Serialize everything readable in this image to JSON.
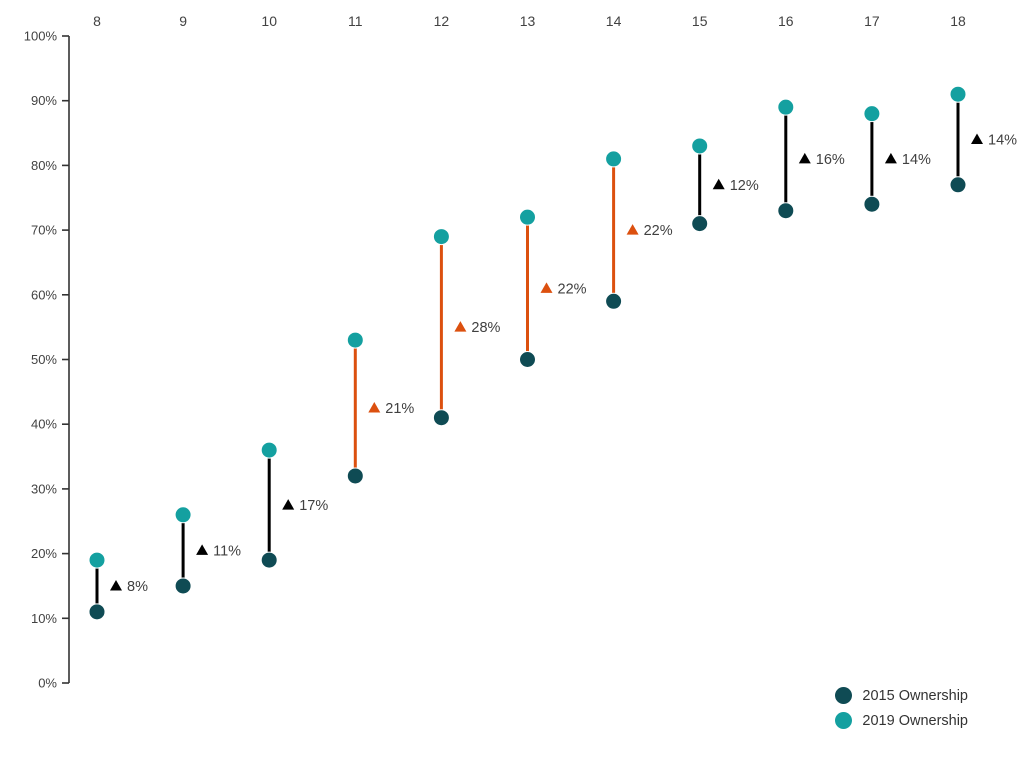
{
  "chart_data": {
    "type": "dumbbell",
    "title": "",
    "categories": [
      "8",
      "9",
      "10",
      "11",
      "12",
      "13",
      "14",
      "15",
      "16",
      "17",
      "18"
    ],
    "series": [
      {
        "name": "2015 Ownership",
        "values": [
          11,
          15,
          19,
          32,
          41,
          50,
          59,
          71,
          73,
          74,
          77
        ],
        "color": "#0F4B54"
      },
      {
        "name": "2019 Ownership",
        "values": [
          19,
          26,
          36,
          53,
          69,
          72,
          81,
          83,
          89,
          88,
          91
        ],
        "color": "#14A0A0"
      }
    ],
    "deltas": [
      {
        "label": "8%",
        "value": 8,
        "highlighted": false
      },
      {
        "label": "11%",
        "value": 11,
        "highlighted": false
      },
      {
        "label": "17%",
        "value": 17,
        "highlighted": false
      },
      {
        "label": "21%",
        "value": 21,
        "highlighted": true
      },
      {
        "label": "28%",
        "value": 28,
        "highlighted": true
      },
      {
        "label": "22%",
        "value": 22,
        "highlighted": true
      },
      {
        "label": "22%",
        "value": 22,
        "highlighted": true
      },
      {
        "label": "12%",
        "value": 12,
        "highlighted": false
      },
      {
        "label": "16%",
        "value": 16,
        "highlighted": false
      },
      {
        "label": "14%",
        "value": 14,
        "highlighted": false
      },
      {
        "label": "14%",
        "value": 14,
        "highlighted": false
      }
    ],
    "delta_marker_glyph": "▲",
    "y_axis": {
      "tick_labels": [
        "0%",
        "10%",
        "20%",
        "30%",
        "40%",
        "50%",
        "60%",
        "70%",
        "80%",
        "90%",
        "100%"
      ],
      "min": 0,
      "max": 100
    },
    "x_axis_position": "top",
    "grid": false,
    "legend_position": "bottom-right",
    "colors": {
      "connector": "#000000",
      "connector_highlight": "#DC500F",
      "delta_triangle": "#000000",
      "delta_triangle_highlight": "#DC500F",
      "delta_text": "#404040",
      "axis_text": "#424242",
      "axis_line": "#333333"
    }
  }
}
